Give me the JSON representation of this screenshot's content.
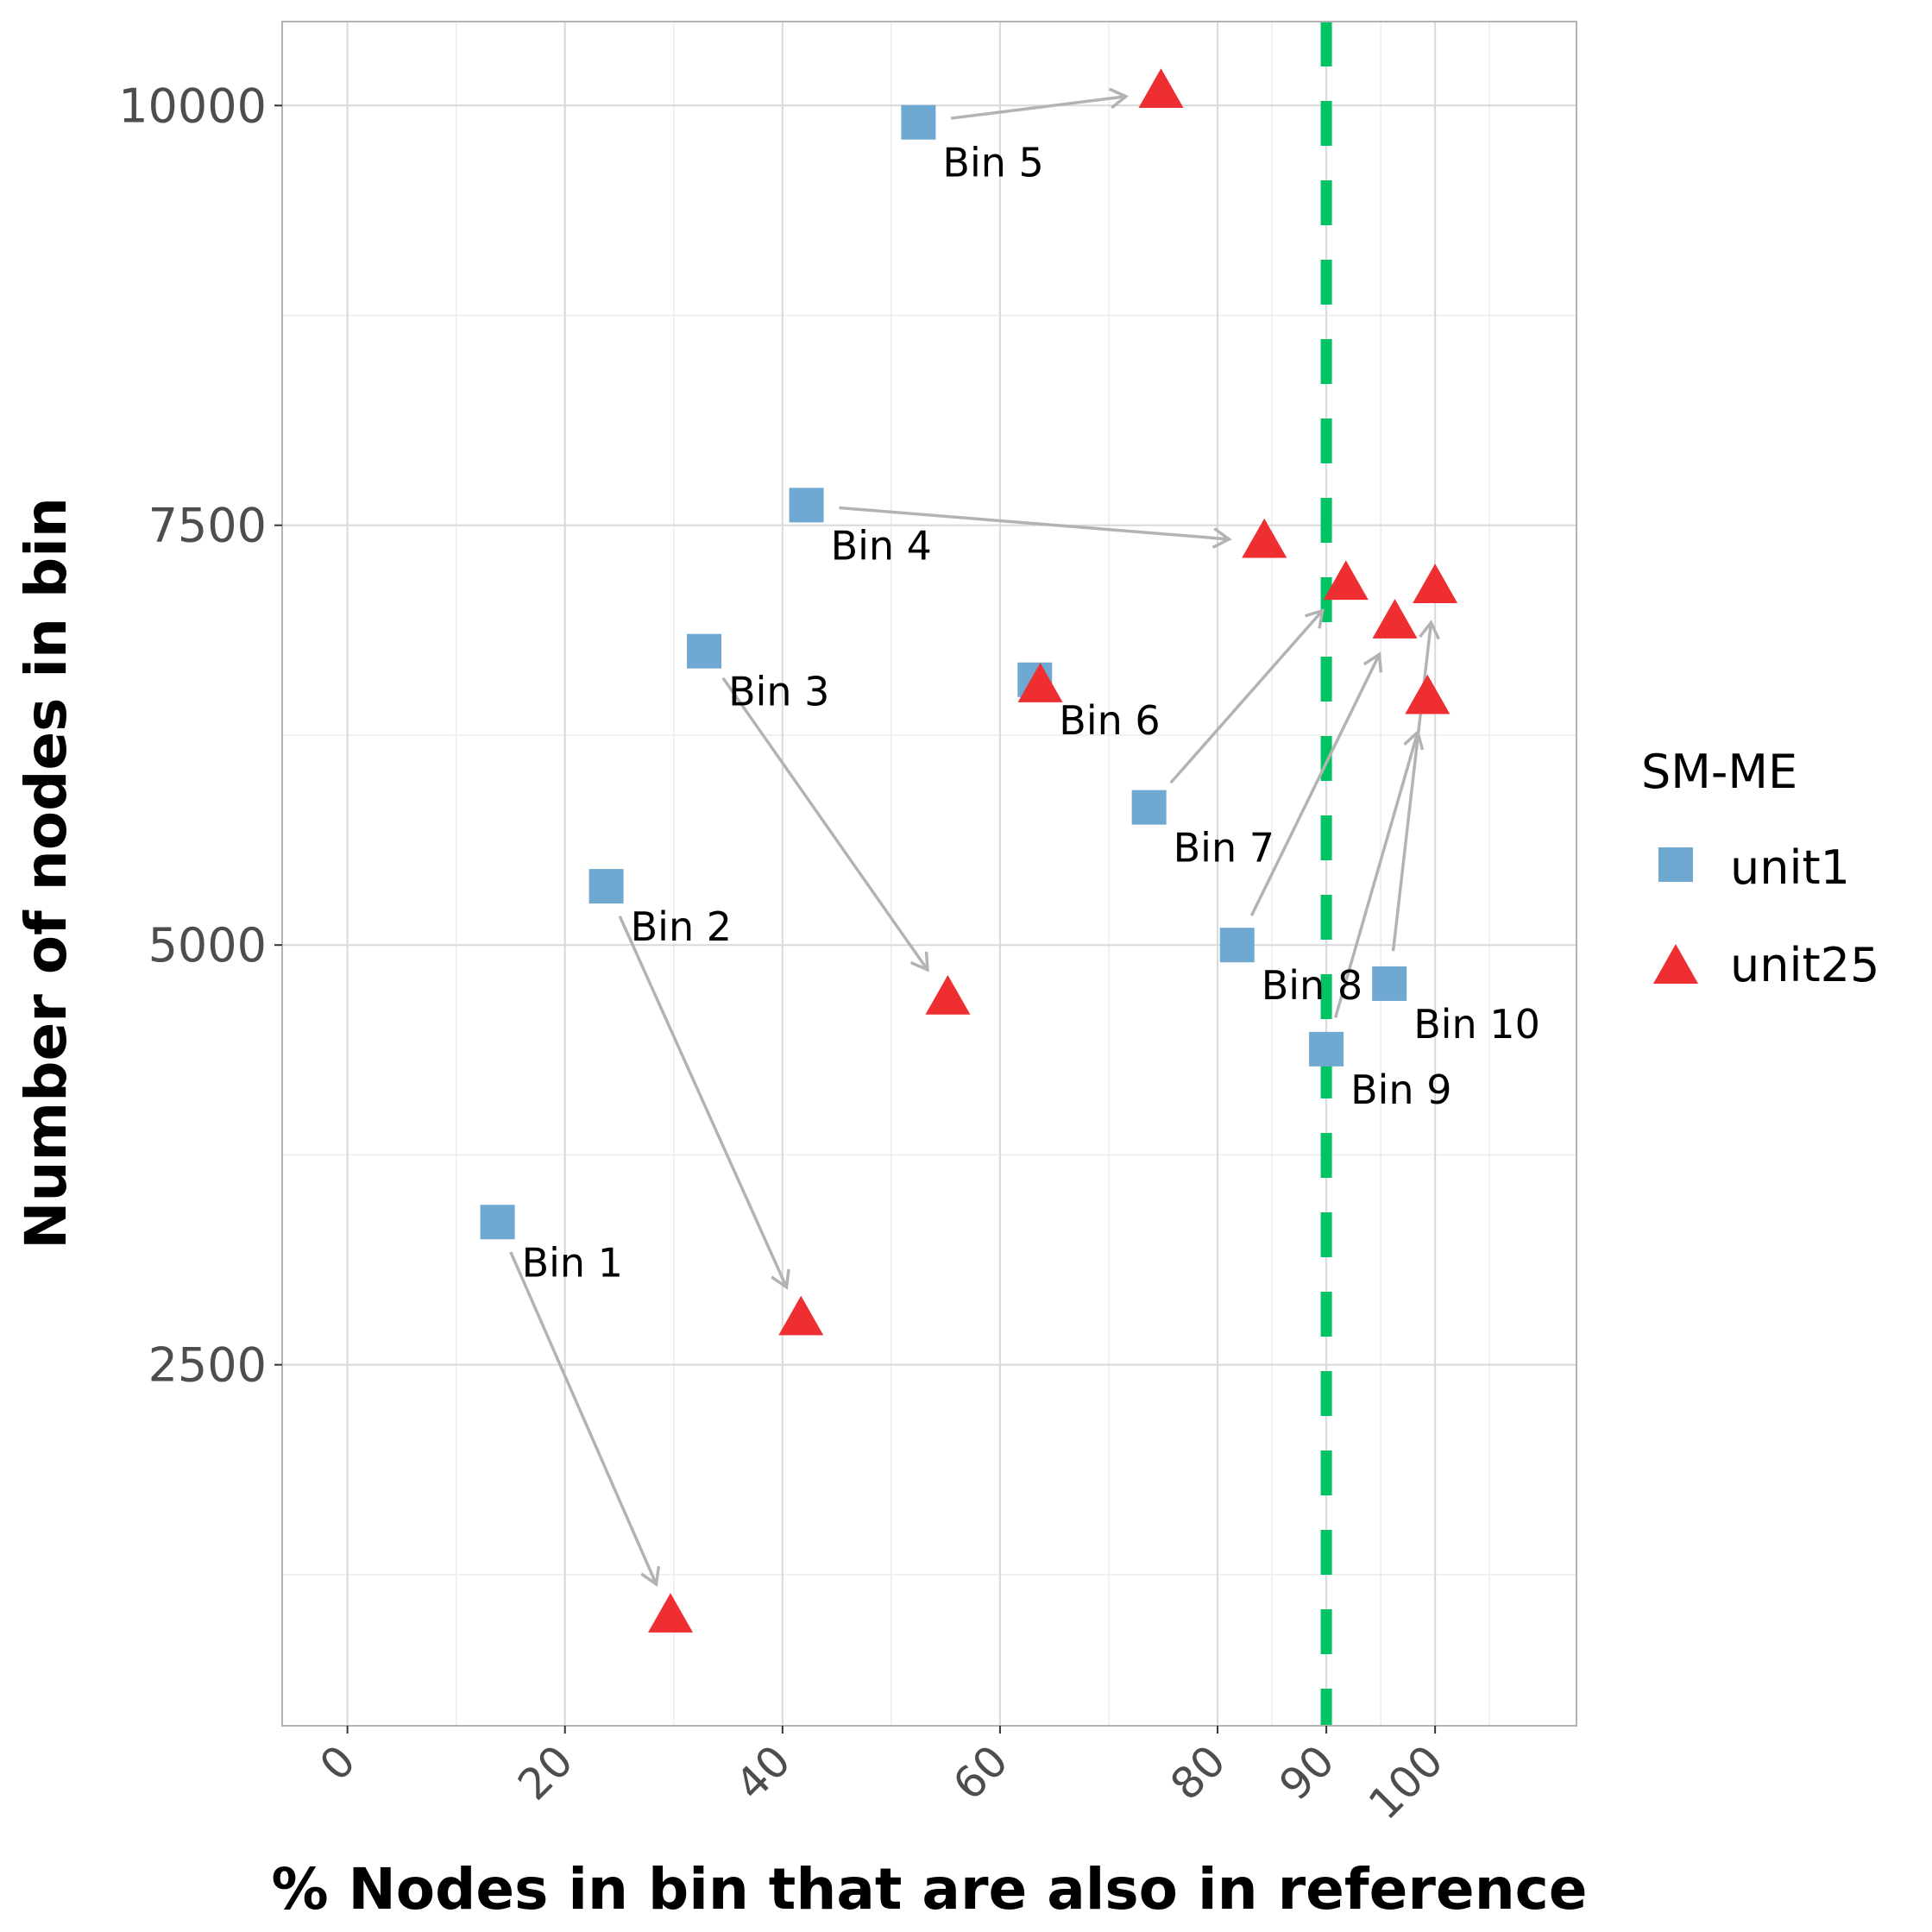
{
  "chart_data": {
    "type": "scatter",
    "xlabel": "% Nodes in bin that are also in reference",
    "ylabel": "Number of nodes in bin",
    "xlim": [
      -6,
      113
    ],
    "ylim": [
      350,
      10500
    ],
    "x_ticks": [
      0,
      20,
      40,
      60,
      80,
      90,
      100
    ],
    "y_ticks": [
      2500,
      5000,
      7500,
      10000
    ],
    "grid": true,
    "reference_line": {
      "x": 90,
      "color": "#00c462",
      "style": "dashed"
    },
    "legend": {
      "title": "SM-ME",
      "position": "right",
      "entries": [
        {
          "name": "unit1",
          "shape": "square",
          "color": "#6fa8d0"
        },
        {
          "name": "unit25",
          "shape": "triangle",
          "color": "#ee2e31"
        }
      ]
    },
    "series": [
      {
        "name": "unit1",
        "points": [
          {
            "label": "Bin 1",
            "x": 13.8,
            "y": 3350
          },
          {
            "label": "Bin 2",
            "x": 23.8,
            "y": 5350
          },
          {
            "label": "Bin 3",
            "x": 32.8,
            "y": 6750
          },
          {
            "label": "Bin 4",
            "x": 42.2,
            "y": 7620
          },
          {
            "label": "Bin 5",
            "x": 52.5,
            "y": 9900
          },
          {
            "label": "Bin 6",
            "x": 63.2,
            "y": 6580
          },
          {
            "label": "Bin 7",
            "x": 73.7,
            "y": 5820
          },
          {
            "label": "Bin 8",
            "x": 81.8,
            "y": 5000
          },
          {
            "label": "Bin 9",
            "x": 90.0,
            "y": 4380
          },
          {
            "label": "Bin 10",
            "x": 95.8,
            "y": 4770
          }
        ]
      },
      {
        "name": "unit25",
        "points": [
          {
            "label": "Bin 1",
            "x": 29.7,
            "y": 1000
          },
          {
            "label": "Bin 2",
            "x": 41.7,
            "y": 2770
          },
          {
            "label": "Bin 3",
            "x": 55.2,
            "y": 4680
          },
          {
            "label": "Bin 4",
            "x": 84.3,
            "y": 7400
          },
          {
            "label": "Bin 5",
            "x": 74.8,
            "y": 10080
          },
          {
            "label": "Bin 6",
            "x": 63.7,
            "y": 6540
          },
          {
            "label": "Bin 7",
            "x": 91.8,
            "y": 7150
          },
          {
            "label": "Bin 8",
            "x": 96.3,
            "y": 6920
          },
          {
            "label": "Bin 9",
            "x": 99.3,
            "y": 6470
          },
          {
            "label": "Bin 10",
            "x": 100.0,
            "y": 7130
          }
        ]
      }
    ]
  }
}
